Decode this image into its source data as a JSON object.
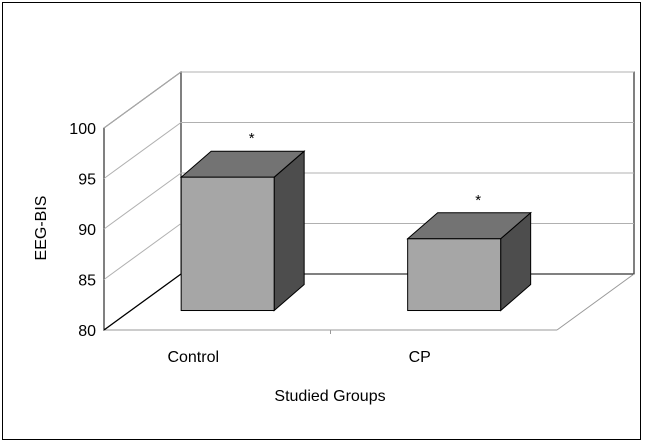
{
  "chart_data": {
    "type": "bar",
    "categories": [
      "Control",
      "CP"
    ],
    "values": [
      93.3,
      87.2
    ],
    "annotations": [
      "*",
      "*"
    ],
    "xlabel": "Studied Groups",
    "ylabel": "EEG-BIS",
    "ylim": [
      80,
      100
    ],
    "yticks": [
      "80",
      "85",
      "90",
      "95",
      "100"
    ],
    "grid": true,
    "style": "3d-bar",
    "colors": {
      "front": "#a6a6a6",
      "top": "#737373",
      "side": "#4d4d4d"
    }
  }
}
